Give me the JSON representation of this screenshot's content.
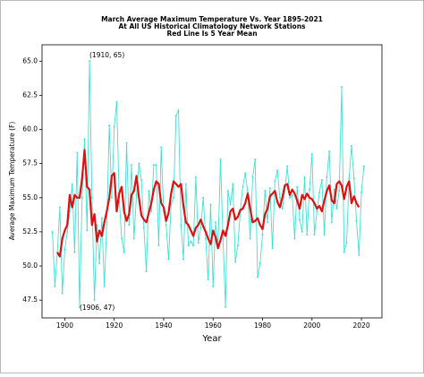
{
  "chart_data": {
    "type": "line",
    "title": [
      "March Average Maximum Temperature Vs. Year 1895-2021",
      "At All US Historical Climatology Network Stations",
      "Red Line Is 5 Year Mean"
    ],
    "xlabel": "Year",
    "ylabel": "Average Maximum Temperature (F)",
    "x": [
      1895,
      1896,
      1897,
      1898,
      1899,
      1900,
      1901,
      1902,
      1903,
      1904,
      1905,
      1906,
      1907,
      1908,
      1909,
      1910,
      1911,
      1912,
      1913,
      1914,
      1915,
      1916,
      1917,
      1918,
      1919,
      1920,
      1921,
      1922,
      1923,
      1924,
      1925,
      1926,
      1927,
      1928,
      1929,
      1930,
      1931,
      1932,
      1933,
      1934,
      1935,
      1936,
      1937,
      1938,
      1939,
      1940,
      1941,
      1942,
      1943,
      1944,
      1945,
      1946,
      1947,
      1948,
      1949,
      1950,
      1951,
      1952,
      1953,
      1954,
      1955,
      1956,
      1957,
      1958,
      1959,
      1960,
      1961,
      1962,
      1963,
      1964,
      1965,
      1966,
      1967,
      1968,
      1969,
      1970,
      1971,
      1972,
      1973,
      1974,
      1975,
      1976,
      1977,
      1978,
      1979,
      1980,
      1981,
      1982,
      1983,
      1984,
      1985,
      1986,
      1987,
      1988,
      1989,
      1990,
      1991,
      1992,
      1993,
      1994,
      1995,
      1996,
      1997,
      1998,
      1999,
      2000,
      2001,
      2002,
      2003,
      2004,
      2005,
      2006,
      2007,
      2008,
      2009,
      2010,
      2011,
      2012,
      2013,
      2014,
      2015,
      2016,
      2017,
      2018,
      2019,
      2020,
      2021
    ],
    "series": [
      {
        "color": "#40e0d0",
        "markers": true,
        "values": [
          52.5,
          48.5,
          51,
          54.3,
          48,
          51.2,
          52.5,
          54,
          56,
          51,
          58.3,
          47,
          55,
          59.3,
          52.6,
          65,
          55,
          47.5,
          53,
          50.2,
          53.5,
          48.5,
          53.2,
          60.3,
          55,
          60.2,
          62,
          55,
          52,
          51,
          59,
          53,
          57.4,
          52,
          55.2,
          57.5,
          56.3,
          52.8,
          49.6,
          55.5,
          54,
          57.4,
          57.4,
          51.5,
          58.7,
          54,
          53,
          50.5,
          54.5,
          55,
          61,
          61.4,
          53,
          50.5,
          56,
          51.5,
          51.8,
          51.5,
          56.5,
          51.7,
          52.8,
          55,
          52,
          49,
          54.5,
          48.5,
          53.2,
          51.5,
          57.8,
          52,
          47,
          55.5,
          54.5,
          56,
          50.3,
          51.5,
          54,
          55.8,
          56.8,
          55.4,
          52,
          56.5,
          57.8,
          49.2,
          50.2,
          52.3,
          55.5,
          53.2,
          55.7,
          51.3,
          56.2,
          57,
          55,
          54.2,
          55.5,
          57.3,
          55,
          55.2,
          52,
          55.8,
          53.4,
          52.5,
          56.5,
          52.3,
          55.6,
          58.2,
          52.3,
          54,
          55.4,
          56.3,
          52.3,
          56.5,
          58.4,
          53.2,
          55.6,
          54.2,
          55.5,
          63.1,
          51,
          51.7,
          56.4,
          58.8,
          56.4,
          53.3,
          50.8,
          55.4,
          57.3
        ]
      },
      {
        "color": "#dd1111",
        "markers": false,
        "values": [
          null,
          null,
          51.0,
          50.7,
          52.0,
          52.6,
          53.0,
          55.2,
          54.3,
          55.2,
          55.0,
          55.0,
          56.4,
          58.5,
          55.8,
          55.6,
          53.0,
          53.8,
          51.8,
          52.6,
          52.2,
          53.2,
          54.0,
          55.0,
          56.6,
          56.8,
          54.0,
          55.3,
          55.8,
          54.0,
          53.3,
          53.8,
          55.2,
          55.5,
          56.6,
          55.0,
          53.7,
          53.4,
          53.2,
          53.9,
          54.6,
          55.6,
          56.2,
          56.0,
          54.6,
          54.3,
          53.3,
          53.9,
          55.3,
          56.2,
          56.0,
          55.8,
          56.0,
          54.4,
          53.2,
          53.0,
          52.6,
          52.2,
          52.8,
          53.0,
          53.4,
          52.9,
          52.5,
          52.0,
          51.6,
          52.6,
          52.1,
          51.3,
          51.9,
          52.6,
          52.2,
          53.0,
          54.0,
          54.2,
          53.4,
          53.6,
          54.1,
          54.2,
          54.6,
          55.3,
          54.2,
          53.2,
          53.3,
          53.5,
          53.0,
          52.7,
          53.8,
          54.2,
          55.1,
          55.3,
          55.5,
          54.7,
          54.3,
          55.0,
          55.9,
          56.0,
          55.2,
          55.6,
          55.3,
          54.8,
          54.2,
          55.2,
          54.9,
          55.3,
          55.0,
          54.9,
          54.6,
          54.2,
          54.4,
          54.0,
          54.8,
          55.5,
          55.9,
          54.8,
          54.6,
          56.0,
          56.2,
          55.9,
          54.9,
          55.8,
          56.2,
          54.6,
          55.1,
          54.6,
          54.3,
          null,
          null
        ]
      }
    ],
    "annotations": [
      "(1910, 65)",
      "(1906, 47)"
    ],
    "xlim": [
      1890.8,
      2028.3
    ],
    "ylim": [
      46.2,
      66.2
    ],
    "xticks": [
      1900,
      1920,
      1940,
      1960,
      1980,
      2000,
      2020
    ],
    "yticks": [
      47.5,
      {
        "value": 50,
        "label": "50.0"
      },
      52.5,
      {
        "value": 55,
        "label": "55.0"
      },
      57.5,
      {
        "value": 60,
        "label": "60.0"
      },
      62.5,
      {
        "value": 65,
        "label": "65.0"
      }
    ]
  }
}
